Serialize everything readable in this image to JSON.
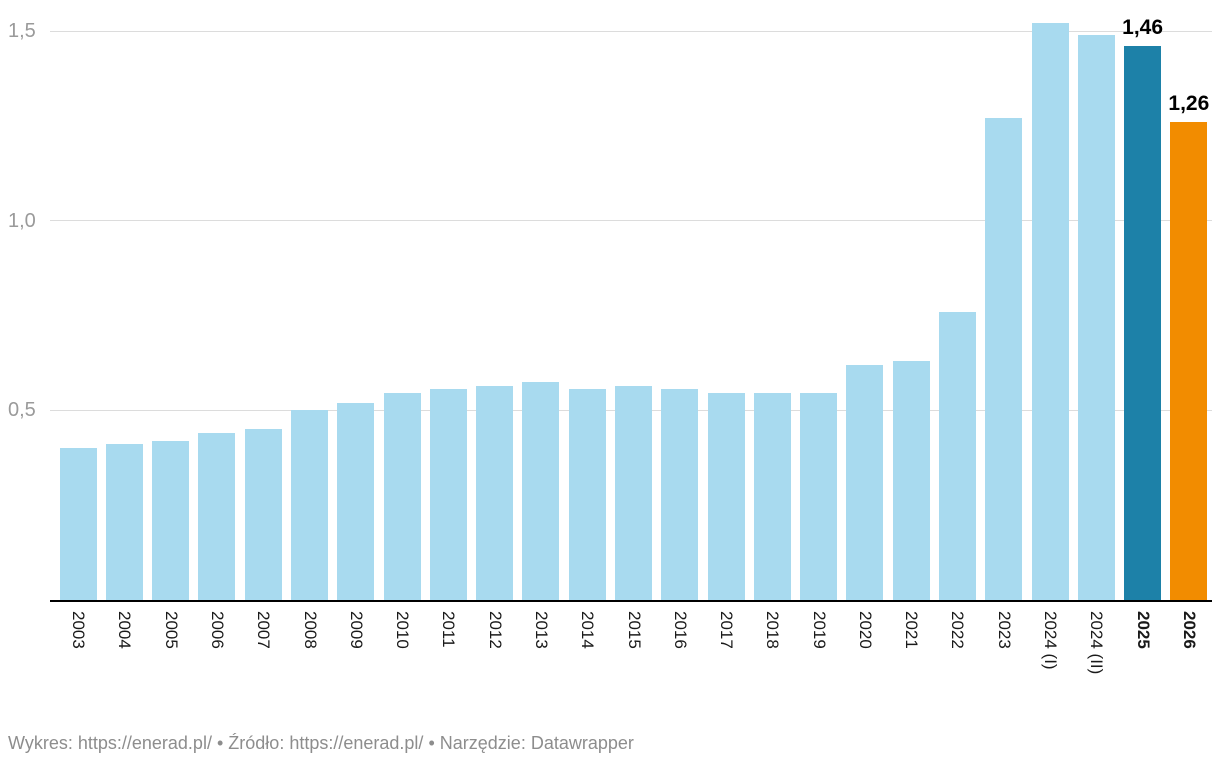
{
  "chart_data": {
    "type": "bar",
    "title": "",
    "xlabel": "",
    "ylabel": "",
    "categories": [
      "2003",
      "2004",
      "2005",
      "2006",
      "2007",
      "2008",
      "2009",
      "2010",
      "2011",
      "2012",
      "2013",
      "2014",
      "2015",
      "2016",
      "2017",
      "2018",
      "2019",
      "2020",
      "2021",
      "2022",
      "2023",
      "2024 (I)",
      "2024 (II)",
      "2025",
      "2026"
    ],
    "values": [
      0.4,
      0.41,
      0.42,
      0.44,
      0.45,
      0.5,
      0.52,
      0.545,
      0.555,
      0.565,
      0.575,
      0.555,
      0.565,
      0.555,
      0.545,
      0.545,
      0.545,
      0.62,
      0.63,
      0.76,
      1.27,
      1.52,
      1.49,
      1.46,
      1.26
    ],
    "y_axis": {
      "range": [
        0,
        1.55
      ],
      "grid": true,
      "ticks": [
        {
          "value": 0.5,
          "label": "0,5"
        },
        {
          "value": 1.0,
          "label": "1,0"
        },
        {
          "value": 1.5,
          "label": "1,5"
        }
      ]
    },
    "bar_color_default": "#A8DAEF",
    "highlight_colors": {
      "2025": "#1D81A8",
      "2026": "#F28C00"
    },
    "bold_categories": [
      "2025",
      "2026"
    ],
    "value_labels": [
      {
        "category": "2025",
        "label": "1,46"
      },
      {
        "category": "2026",
        "label": "1,26"
      }
    ],
    "legend_position": "none",
    "gridline_color": "#DCDCDC",
    "axis_line_color": "#000000",
    "y_tick_color": "#9A9A9A",
    "x_tick_color": "#1A1A1A"
  },
  "footer": {
    "chart_label": "Wykres:",
    "chart_link": "https://enerad.pl/",
    "separator": "•",
    "source_label": "Źródło:",
    "source_link": "https://enerad.pl/",
    "tool_label": "Narzędzie:",
    "tool_link": "Datawrapper"
  }
}
